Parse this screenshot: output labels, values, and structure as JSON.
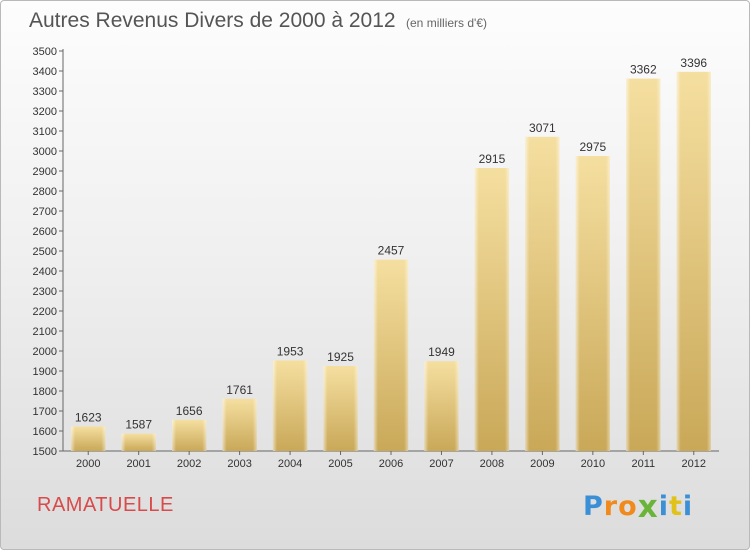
{
  "chart_data": {
    "type": "bar",
    "title": "Autres Revenus Divers de 2000 à 2012",
    "subtitle": "(en milliers d'€)",
    "categories": [
      "2000",
      "2001",
      "2002",
      "2003",
      "2004",
      "2005",
      "2006",
      "2007",
      "2008",
      "2009",
      "2010",
      "2011",
      "2012"
    ],
    "values": [
      1623,
      1587,
      1656,
      1761,
      1953,
      1925,
      2457,
      1949,
      2915,
      3071,
      2975,
      3362,
      3396
    ],
    "ylim": [
      1500,
      3500
    ],
    "ytick_step": 100,
    "grid": false,
    "bar_color_light": "#f5dfa0",
    "bar_color_dark": "#c9a858"
  },
  "location_label": "RAMATUELLE",
  "brand": {
    "letters": [
      "P",
      "r",
      "o",
      "x",
      "i",
      "t",
      "i"
    ],
    "colors": [
      "#3a8fd6",
      "#f08a1c",
      "#f08a1c",
      "#6bb43a",
      "#3a8fd6",
      "#e0c21a",
      "#3a8fd6"
    ]
  }
}
